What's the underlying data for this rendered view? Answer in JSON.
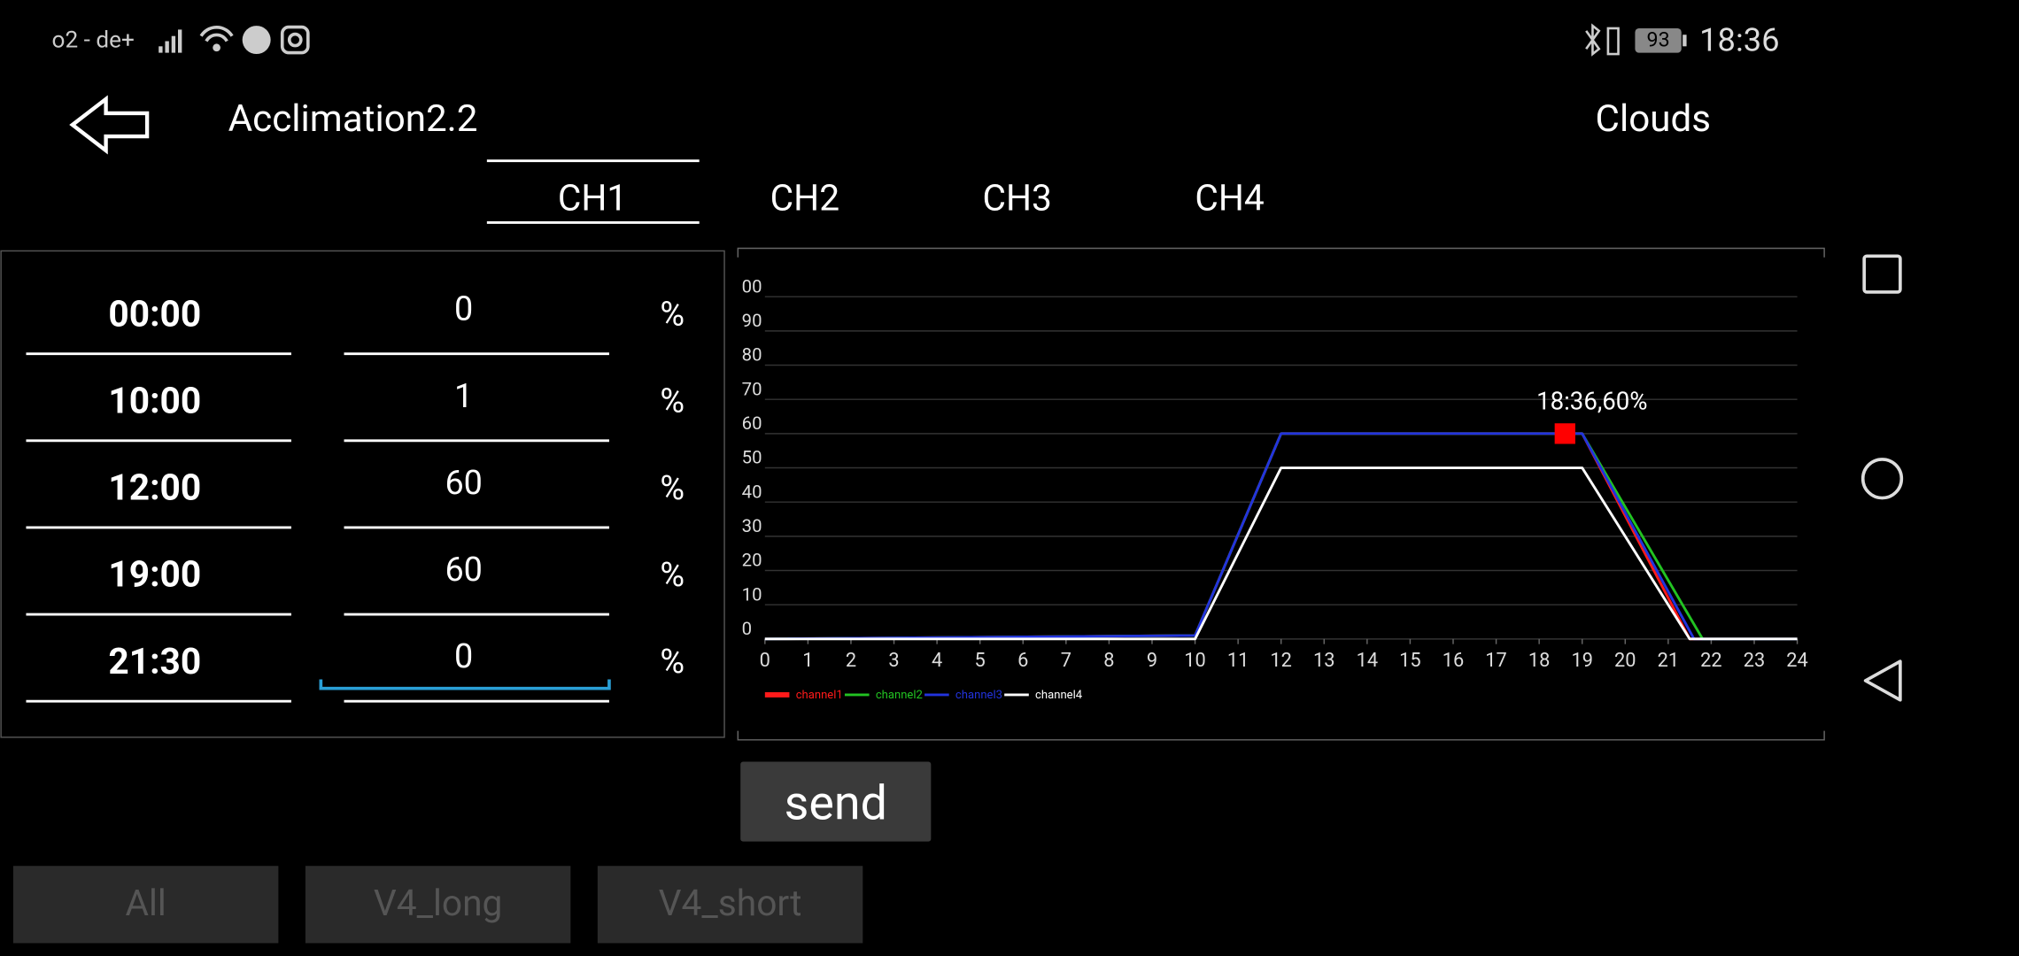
{
  "status_bar": {
    "carrier": "o2 - de+",
    "battery": "93",
    "time": "18:36"
  },
  "header": {
    "title": "Acclimation2.2",
    "mode": "Clouds"
  },
  "tabs": [
    "CH1",
    "CH2",
    "CH3",
    "CH4"
  ],
  "schedule": {
    "unit": "%",
    "rows": [
      {
        "time": "00:00",
        "value": "0"
      },
      {
        "time": "10:00",
        "value": "1"
      },
      {
        "time": "12:00",
        "value": "60"
      },
      {
        "time": "19:00",
        "value": "60"
      },
      {
        "time": "21:30",
        "value": "0"
      }
    ]
  },
  "chart_data": {
    "type": "line",
    "xlim": [
      0,
      24
    ],
    "ylim": [
      0,
      100
    ],
    "xticks": [
      0,
      1,
      2,
      3,
      4,
      5,
      6,
      7,
      8,
      9,
      10,
      11,
      12,
      13,
      14,
      15,
      16,
      17,
      18,
      19,
      20,
      21,
      22,
      23,
      24
    ],
    "yticks": [
      0,
      10,
      20,
      30,
      40,
      50,
      60,
      70,
      80,
      90,
      {
        "value": 100,
        "label": "00"
      }
    ],
    "grid": true,
    "series": [
      {
        "name": "channel1",
        "color": "#ff1a1a",
        "x": [
          0,
          10,
          12,
          19,
          21.5,
          24
        ],
        "values": [
          0,
          1,
          60,
          60,
          0,
          0
        ]
      },
      {
        "name": "channel2",
        "color": "#22c322",
        "x": [
          0,
          10,
          12,
          19,
          21.8,
          24
        ],
        "values": [
          0,
          1,
          60,
          60,
          0,
          0
        ]
      },
      {
        "name": "channel3",
        "color": "#2233dd",
        "x": [
          0,
          10,
          12,
          19,
          21.6,
          24
        ],
        "values": [
          0,
          1,
          60,
          60,
          0,
          0
        ]
      },
      {
        "name": "channel4",
        "color": "#ffffff",
        "x": [
          0,
          10,
          12,
          19,
          21.5,
          24
        ],
        "values": [
          0,
          0,
          50,
          50,
          0,
          0
        ]
      }
    ],
    "annotation": {
      "text": "18:36,60%",
      "x": 18.6,
      "y": 60,
      "color": "#ff0000"
    }
  },
  "buttons": {
    "send": "send",
    "presets": [
      "All",
      "V4_long",
      "V4_short"
    ]
  }
}
